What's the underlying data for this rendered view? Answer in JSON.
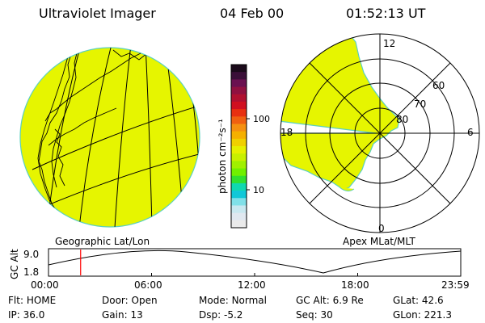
{
  "header": {
    "title": "Ultraviolet Imager",
    "date": "04 Feb 00",
    "time": "01:52:13 UT"
  },
  "geo_panel": {
    "label": "Geographic Lat/Lon",
    "fill_color": "#e6f500"
  },
  "mag_panel": {
    "label": "Apex MLat/MLT",
    "mlt_labels": {
      "top": "12",
      "left": "18",
      "right": "6",
      "bottom": "0"
    },
    "lat_labels": [
      "60",
      "70",
      "80"
    ],
    "fill_color": "#e6f500"
  },
  "colorbar": {
    "unit_label": "photon cm⁻²s⁻¹",
    "tick_labels": [
      "100",
      "10"
    ],
    "colors": [
      "#1a0a1a",
      "#3a0f38",
      "#6a1050",
      "#901040",
      "#b01030",
      "#d01020",
      "#e83010",
      "#f06010",
      "#f59010",
      "#f5b000",
      "#f0d000",
      "#e6f000",
      "#c8f000",
      "#a0f000",
      "#70f000",
      "#30e030",
      "#10d8b0",
      "#10c8d8",
      "#80e0e8",
      "#c8e8f0",
      "#e0e8f0",
      "#eaeaea"
    ]
  },
  "altitude_plot": {
    "ylabel": "GC Alt",
    "ticks": [
      "9.0",
      "1.8"
    ],
    "time_ticks": [
      "00:00",
      "06:00",
      "12:00",
      "18:00",
      "23:59"
    ],
    "marker_time_hours": 1.87,
    "marker_color": "#ff0000"
  },
  "status": [
    {
      "label": "Flt:",
      "value": "HOME"
    },
    {
      "label": "Door:",
      "value": "Open"
    },
    {
      "label": "Mode:",
      "value": "Normal"
    },
    {
      "label": "GC Alt:",
      "value": "6.9 Re"
    },
    {
      "label": "GLat:",
      "value": "42.6"
    },
    {
      "label": "IP:",
      "value": "36.0"
    },
    {
      "label": "Gain:",
      "value": "13"
    },
    {
      "label": "Dsp:",
      "value": "-5.2"
    },
    {
      "label": "Seq:",
      "value": "30"
    },
    {
      "label": "GLon:",
      "value": "221.3"
    }
  ]
}
